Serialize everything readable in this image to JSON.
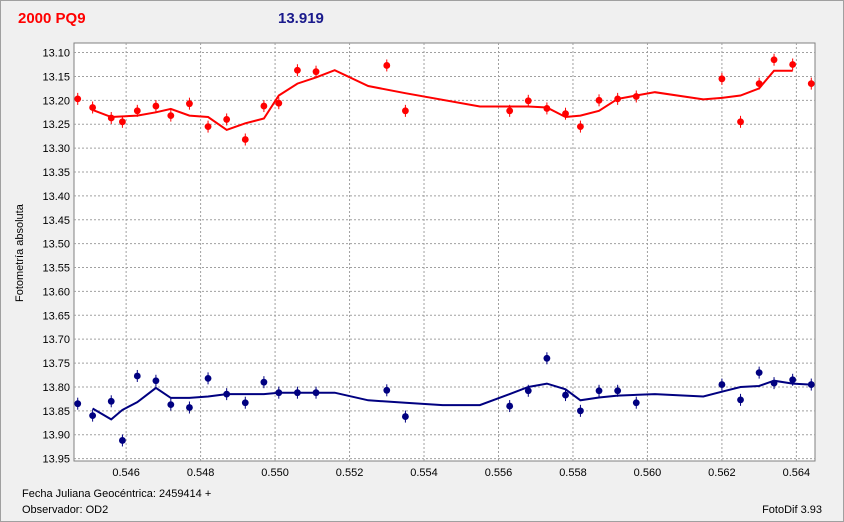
{
  "header": {
    "object_name": "2000 PQ9",
    "magnitude": "13.919"
  },
  "footer": {
    "jd_label": "Fecha Juliana Geocéntrica: 2459414 +",
    "observer_label": "Observador: OD2",
    "software": "FotoDif 3.93"
  },
  "colors": {
    "target": "#ff0000",
    "comparison": "#000080",
    "grid": "#a0a0a0"
  },
  "chart_data": {
    "type": "scatter",
    "title": "2000 PQ9",
    "xlabel": "",
    "ylabel": "Fotometría absoluta",
    "xlim": [
      0.5446,
      0.5645
    ],
    "ylim": [
      13.955,
      13.08
    ],
    "y_inverted": true,
    "grid": true,
    "x_ticks": [
      "0.546",
      "0.548",
      "0.550",
      "0.552",
      "0.554",
      "0.556",
      "0.558",
      "0.560",
      "0.562",
      "0.564"
    ],
    "x_tick_values": [
      0.546,
      0.548,
      0.55,
      0.552,
      0.554,
      0.556,
      0.558,
      0.56,
      0.562,
      0.564
    ],
    "y_ticks": [
      "13.10",
      "13.15",
      "13.20",
      "13.25",
      "13.30",
      "13.35",
      "13.40",
      "13.45",
      "13.50",
      "13.55",
      "13.60",
      "13.65",
      "13.70",
      "13.75",
      "13.80",
      "13.85",
      "13.90",
      "13.95"
    ],
    "y_tick_values": [
      13.1,
      13.15,
      13.2,
      13.25,
      13.3,
      13.35,
      13.4,
      13.45,
      13.5,
      13.55,
      13.6,
      13.65,
      13.7,
      13.75,
      13.8,
      13.85,
      13.9,
      13.95
    ],
    "series": [
      {
        "color": "#ff0000",
        "points": [
          [
            0.5447,
            13.197
          ],
          [
            0.5451,
            13.215
          ],
          [
            0.5456,
            13.237
          ],
          [
            0.5459,
            13.245
          ],
          [
            0.5463,
            13.222
          ],
          [
            0.5468,
            13.212
          ],
          [
            0.5472,
            13.232
          ],
          [
            0.5477,
            13.207
          ],
          [
            0.5482,
            13.255
          ],
          [
            0.5487,
            13.24
          ],
          [
            0.5492,
            13.282
          ],
          [
            0.5497,
            13.212
          ],
          [
            0.5501,
            13.206
          ],
          [
            0.5506,
            13.137
          ],
          [
            0.5511,
            13.14
          ],
          [
            0.553,
            13.127
          ],
          [
            0.5535,
            13.222
          ],
          [
            0.5563,
            13.222
          ],
          [
            0.5568,
            13.201
          ],
          [
            0.5573,
            13.217
          ],
          [
            0.5578,
            13.228
          ],
          [
            0.5582,
            13.255
          ],
          [
            0.5587,
            13.2
          ],
          [
            0.5592,
            13.197
          ],
          [
            0.5597,
            13.192
          ],
          [
            0.562,
            13.155
          ],
          [
            0.5625,
            13.245
          ],
          [
            0.563,
            13.165
          ],
          [
            0.5634,
            13.115
          ],
          [
            0.5639,
            13.125
          ],
          [
            0.5644,
            13.165
          ]
        ],
        "trend": [
          [
            0.5451,
            13.22
          ],
          [
            0.5456,
            13.235
          ],
          [
            0.5463,
            13.232
          ],
          [
            0.5468,
            13.225
          ],
          [
            0.5472,
            13.218
          ],
          [
            0.5477,
            13.232
          ],
          [
            0.5482,
            13.235
          ],
          [
            0.5487,
            13.262
          ],
          [
            0.5492,
            13.248
          ],
          [
            0.5497,
            13.238
          ],
          [
            0.5501,
            13.19
          ],
          [
            0.5506,
            13.165
          ],
          [
            0.5511,
            13.152
          ],
          [
            0.5516,
            13.137
          ],
          [
            0.5525,
            13.17
          ],
          [
            0.5535,
            13.185
          ],
          [
            0.5555,
            13.213
          ],
          [
            0.5568,
            13.213
          ],
          [
            0.5573,
            13.215
          ],
          [
            0.5578,
            13.235
          ],
          [
            0.5582,
            13.232
          ],
          [
            0.5587,
            13.222
          ],
          [
            0.5592,
            13.197
          ],
          [
            0.5597,
            13.19
          ],
          [
            0.5602,
            13.183
          ],
          [
            0.5615,
            13.198
          ],
          [
            0.562,
            13.195
          ],
          [
            0.5625,
            13.19
          ],
          [
            0.563,
            13.175
          ],
          [
            0.5634,
            13.138
          ],
          [
            0.5639,
            13.138
          ]
        ]
      },
      {
        "color": "#000080",
        "points": [
          [
            0.5447,
            13.835
          ],
          [
            0.5451,
            13.86
          ],
          [
            0.5456,
            13.83
          ],
          [
            0.5459,
            13.912
          ],
          [
            0.5463,
            13.777
          ],
          [
            0.5468,
            13.787
          ],
          [
            0.5472,
            13.837
          ],
          [
            0.5477,
            13.843
          ],
          [
            0.5482,
            13.782
          ],
          [
            0.5487,
            13.815
          ],
          [
            0.5492,
            13.833
          ],
          [
            0.5497,
            13.79
          ],
          [
            0.5501,
            13.812
          ],
          [
            0.5506,
            13.812
          ],
          [
            0.5511,
            13.812
          ],
          [
            0.553,
            13.807
          ],
          [
            0.5535,
            13.862
          ],
          [
            0.5563,
            13.84
          ],
          [
            0.5568,
            13.808
          ],
          [
            0.5573,
            13.74
          ],
          [
            0.5578,
            13.817
          ],
          [
            0.5582,
            13.85
          ],
          [
            0.5587,
            13.808
          ],
          [
            0.5592,
            13.808
          ],
          [
            0.5597,
            13.833
          ],
          [
            0.562,
            13.795
          ],
          [
            0.5625,
            13.827
          ],
          [
            0.563,
            13.77
          ],
          [
            0.5634,
            13.792
          ],
          [
            0.5639,
            13.785
          ],
          [
            0.5644,
            13.795
          ]
        ],
        "trend": [
          [
            0.5451,
            13.845
          ],
          [
            0.5456,
            13.868
          ],
          [
            0.5459,
            13.848
          ],
          [
            0.5463,
            13.832
          ],
          [
            0.5468,
            13.802
          ],
          [
            0.5472,
            13.823
          ],
          [
            0.5477,
            13.823
          ],
          [
            0.5482,
            13.82
          ],
          [
            0.5487,
            13.815
          ],
          [
            0.5497,
            13.815
          ],
          [
            0.5501,
            13.812
          ],
          [
            0.5511,
            13.812
          ],
          [
            0.5516,
            13.812
          ],
          [
            0.5525,
            13.828
          ],
          [
            0.5535,
            13.833
          ],
          [
            0.5545,
            13.838
          ],
          [
            0.5555,
            13.838
          ],
          [
            0.5563,
            13.815
          ],
          [
            0.5568,
            13.8
          ],
          [
            0.5573,
            13.793
          ],
          [
            0.5578,
            13.805
          ],
          [
            0.5582,
            13.828
          ],
          [
            0.5587,
            13.822
          ],
          [
            0.5592,
            13.818
          ],
          [
            0.5602,
            13.815
          ],
          [
            0.5615,
            13.82
          ],
          [
            0.562,
            13.81
          ],
          [
            0.5625,
            13.8
          ],
          [
            0.563,
            13.798
          ],
          [
            0.5634,
            13.787
          ],
          [
            0.5639,
            13.793
          ],
          [
            0.5644,
            13.795
          ]
        ]
      }
    ]
  }
}
